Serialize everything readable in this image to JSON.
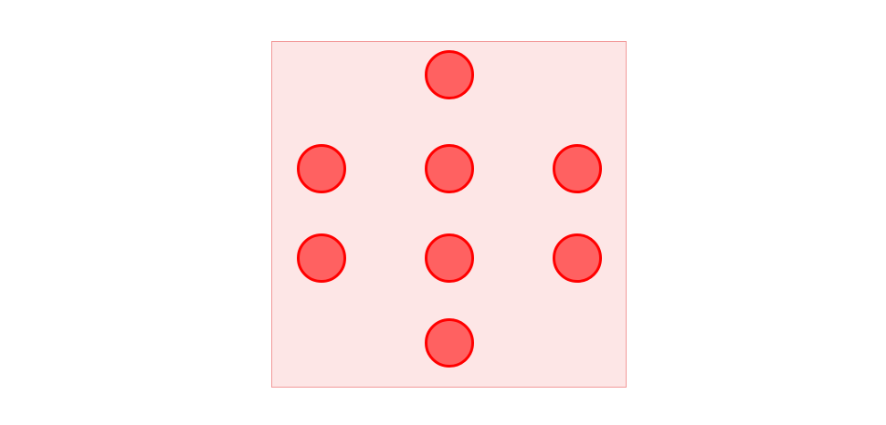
{
  "diagram": {
    "panel_fill": "#fde6e6",
    "panel_border": "#f29a9a",
    "dot_fill": "#ff6161",
    "dot_stroke": "#ff0000",
    "dot_count": 8
  }
}
